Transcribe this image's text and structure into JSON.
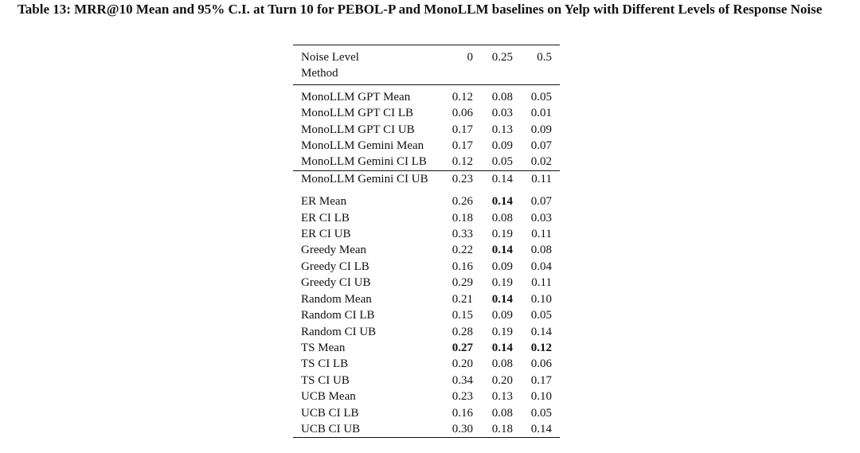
{
  "caption": "Table 13: MRR@10 Mean and 95% C.I. at Turn 10 for PEBOL-P and MonoLLM baselines on Yelp with Different Levels of Response Noise",
  "table": {
    "header_row1": {
      "label": "Noise Level",
      "levels": [
        "0",
        "0.25",
        "0.5"
      ]
    },
    "header_row2": {
      "label": "Method"
    },
    "mono_rows": [
      {
        "method": "MonoLLM GPT Mean",
        "v": [
          "0.12",
          "0.08",
          "0.05"
        ]
      },
      {
        "method": "MonoLLM GPT CI LB",
        "v": [
          "0.06",
          "0.03",
          "0.01"
        ]
      },
      {
        "method": "MonoLLM GPT CI UB",
        "v": [
          "0.17",
          "0.13",
          "0.09"
        ]
      },
      {
        "method": "MonoLLM Gemini Mean",
        "v": [
          "0.17",
          "0.09",
          "0.07"
        ]
      },
      {
        "method": "MonoLLM Gemini CI LB",
        "v": [
          "0.12",
          "0.05",
          "0.02"
        ]
      },
      {
        "method": "MonoLLM Gemini CI UB",
        "v": [
          "0.23",
          "0.14",
          "0.11"
        ]
      }
    ],
    "bandit_rows": [
      {
        "method": "ER Mean",
        "v": [
          "0.26",
          "0.14",
          "0.07"
        ]
      },
      {
        "method": "ER CI LB",
        "v": [
          "0.18",
          "0.08",
          "0.03"
        ]
      },
      {
        "method": "ER CI UB",
        "v": [
          "0.33",
          "0.19",
          "0.11"
        ]
      },
      {
        "method": "Greedy Mean",
        "v": [
          "0.22",
          "0.14",
          "0.08"
        ]
      },
      {
        "method": "Greedy CI LB",
        "v": [
          "0.16",
          "0.09",
          "0.04"
        ]
      },
      {
        "method": "Greedy CI UB",
        "v": [
          "0.29",
          "0.19",
          "0.11"
        ]
      },
      {
        "method": "Random Mean",
        "v": [
          "0.21",
          "0.14",
          "0.10"
        ]
      },
      {
        "method": "Random CI LB",
        "v": [
          "0.15",
          "0.09",
          "0.05"
        ]
      },
      {
        "method": "Random CI UB",
        "v": [
          "0.28",
          "0.19",
          "0.14"
        ]
      },
      {
        "method": "TS Mean",
        "v": [
          "0.27",
          "0.14",
          "0.12"
        ]
      },
      {
        "method": "TS CI LB",
        "v": [
          "0.20",
          "0.08",
          "0.06"
        ]
      },
      {
        "method": "TS CI UB",
        "v": [
          "0.34",
          "0.20",
          "0.17"
        ]
      },
      {
        "method": "UCB Mean",
        "v": [
          "0.23",
          "0.13",
          "0.10"
        ]
      },
      {
        "method": "UCB CI LB",
        "v": [
          "0.16",
          "0.08",
          "0.05"
        ]
      },
      {
        "method": "UCB CI UB",
        "v": [
          "0.30",
          "0.18",
          "0.14"
        ]
      }
    ]
  }
}
